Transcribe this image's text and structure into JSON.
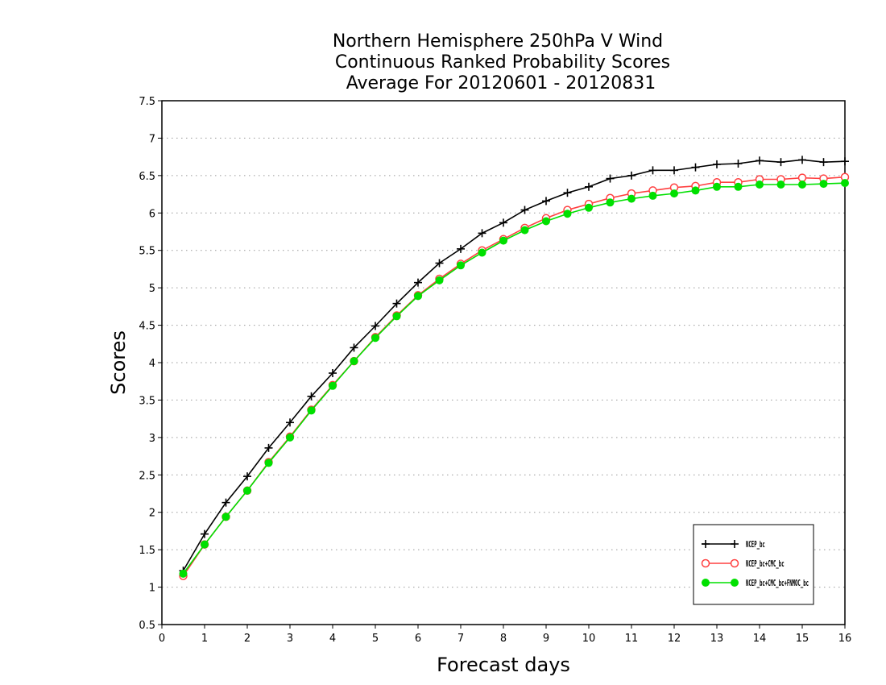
{
  "chart_data": {
    "type": "line",
    "title": [
      "Northern Hemisphere 250hPa V Wind",
      "Continuous Ranked Probability Scores",
      "Average For 20120601 - 20120831"
    ],
    "xlabel": "Forecast days",
    "ylabel": "Scores",
    "xlim": [
      0,
      16
    ],
    "ylim": [
      0.5,
      7.5
    ],
    "xticks": [
      "0",
      "1",
      "2",
      "3",
      "4",
      "5",
      "6",
      "7",
      "8",
      "9",
      "10",
      "11",
      "12",
      "13",
      "14",
      "15",
      "16"
    ],
    "yticks": [
      "0.5",
      "1",
      "1.5",
      "2",
      "2.5",
      "3",
      "3.5",
      "4",
      "4.5",
      "5",
      "5.5",
      "6",
      "6.5",
      "7",
      "7.5"
    ],
    "grid": true,
    "legend_position": "bottom-right",
    "x": [
      0.5,
      1,
      1.5,
      2,
      2.5,
      3,
      3.5,
      4,
      4.5,
      5,
      5.5,
      6,
      6.5,
      7,
      7.5,
      8,
      8.5,
      9,
      9.5,
      10,
      10.5,
      11,
      11.5,
      12,
      12.5,
      13,
      13.5,
      14,
      14.5,
      15,
      15.5,
      16
    ],
    "series": [
      {
        "name": "NCEP_bc",
        "color": "#000000",
        "marker": "plus",
        "values": [
          1.22,
          1.71,
          2.13,
          2.48,
          2.86,
          3.2,
          3.55,
          3.86,
          4.2,
          4.49,
          4.79,
          5.07,
          5.33,
          5.52,
          5.73,
          5.87,
          6.04,
          6.16,
          6.27,
          6.35,
          6.46,
          6.5,
          6.57,
          6.57,
          6.61,
          6.65,
          6.66,
          6.7,
          6.68,
          6.71,
          6.68,
          6.69
        ]
      },
      {
        "name": "NCEP_bc+CMC_bc",
        "color": "#ff4040",
        "marker": "open-circle",
        "values": [
          1.15,
          1.57,
          1.94,
          2.29,
          2.67,
          3.01,
          3.37,
          3.7,
          4.02,
          4.34,
          4.63,
          4.9,
          5.12,
          5.32,
          5.5,
          5.65,
          5.8,
          5.93,
          6.04,
          6.12,
          6.2,
          6.26,
          6.3,
          6.34,
          6.36,
          6.41,
          6.41,
          6.45,
          6.45,
          6.47,
          6.46,
          6.48
        ]
      },
      {
        "name": "NCEP_bc+CMC_bc+FNMOC_bc",
        "color": "#00e000",
        "marker": "filled-circle",
        "values": [
          1.18,
          1.57,
          1.94,
          2.29,
          2.66,
          3.0,
          3.36,
          3.69,
          4.02,
          4.33,
          4.62,
          4.89,
          5.1,
          5.3,
          5.47,
          5.63,
          5.77,
          5.89,
          5.99,
          6.07,
          6.14,
          6.19,
          6.23,
          6.26,
          6.3,
          6.35,
          6.35,
          6.38,
          6.38,
          6.38,
          6.39,
          6.4
        ]
      }
    ]
  }
}
